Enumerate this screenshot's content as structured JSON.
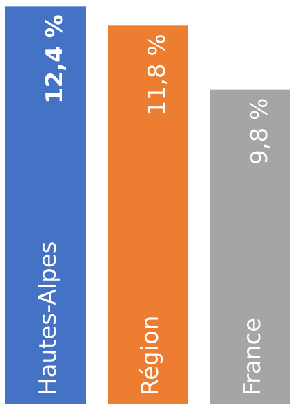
{
  "chart_data": {
    "type": "bar",
    "categories": [
      "Hautes-Alpes",
      "Région",
      "France"
    ],
    "values": [
      12.4,
      11.8,
      9.8
    ],
    "value_labels": [
      "12,4 %",
      "11,8 %",
      "9,8 %"
    ],
    "colors": [
      "#4472c4",
      "#ed7d31",
      "#a5a5a5"
    ],
    "bold": [
      true,
      false,
      false
    ],
    "ylim": [
      0,
      12.6
    ]
  }
}
